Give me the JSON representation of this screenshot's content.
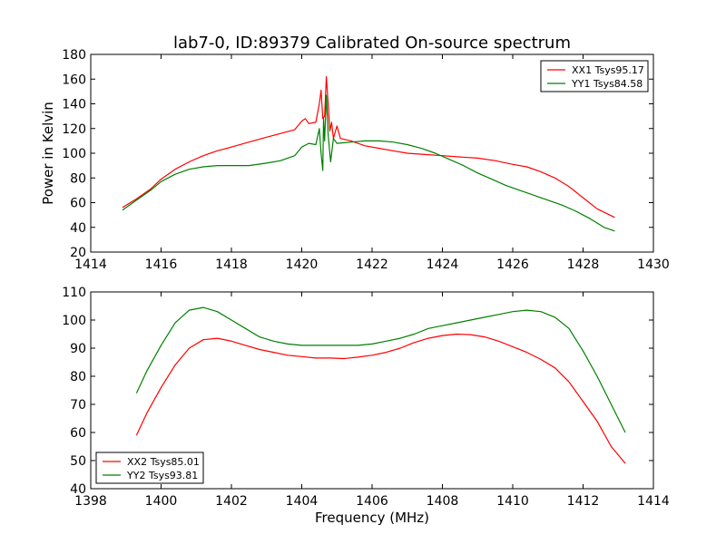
{
  "title": "lab7-0, ID:89379 Calibrated On-source spectrum",
  "colors": {
    "red": "#ff0000",
    "green": "#008000"
  },
  "chart_data": [
    {
      "type": "line",
      "ylabel": "Power in Kelvin",
      "xlabel": "",
      "xlim": [
        1414,
        1430
      ],
      "ylim": [
        20,
        180
      ],
      "xticks": [
        1414,
        1416,
        1418,
        1420,
        1422,
        1424,
        1426,
        1428,
        1430
      ],
      "yticks": [
        20,
        40,
        60,
        80,
        100,
        120,
        140,
        160,
        180
      ],
      "legend_position": "top-right",
      "series": [
        {
          "name": "XX1 Tsys95.17",
          "color": "#ff0000",
          "points": [
            [
              1414.9,
              56
            ],
            [
              1415.3,
              63
            ],
            [
              1415.7,
              71
            ],
            [
              1416.0,
              79
            ],
            [
              1416.4,
              87
            ],
            [
              1416.8,
              93
            ],
            [
              1417.2,
              98
            ],
            [
              1417.6,
              102
            ],
            [
              1418.0,
              105
            ],
            [
              1418.5,
              109
            ],
            [
              1419.0,
              113
            ],
            [
              1419.4,
              116
            ],
            [
              1419.8,
              119
            ],
            [
              1420.0,
              126
            ],
            [
              1420.1,
              128
            ],
            [
              1420.2,
              124
            ],
            [
              1420.4,
              125
            ],
            [
              1420.5,
              140
            ],
            [
              1420.55,
              151
            ],
            [
              1420.6,
              128
            ],
            [
              1420.65,
              130
            ],
            [
              1420.7,
              162
            ],
            [
              1420.75,
              140
            ],
            [
              1420.8,
              118
            ],
            [
              1420.85,
              125
            ],
            [
              1420.9,
              112
            ],
            [
              1421.0,
              122
            ],
            [
              1421.1,
              112
            ],
            [
              1421.4,
              110
            ],
            [
              1421.8,
              106
            ],
            [
              1422.2,
              104
            ],
            [
              1422.6,
              102
            ],
            [
              1423.0,
              100
            ],
            [
              1423.5,
              99
            ],
            [
              1424.0,
              98
            ],
            [
              1424.5,
              97
            ],
            [
              1425.0,
              96
            ],
            [
              1425.5,
              94
            ],
            [
              1426.0,
              91
            ],
            [
              1426.4,
              89
            ],
            [
              1426.8,
              85
            ],
            [
              1427.2,
              80
            ],
            [
              1427.6,
              73
            ],
            [
              1428.0,
              64
            ],
            [
              1428.4,
              55
            ],
            [
              1428.9,
              48
            ]
          ]
        },
        {
          "name": "YY1 Tsys84.58",
          "color": "#008000",
          "points": [
            [
              1414.9,
              54
            ],
            [
              1415.3,
              62
            ],
            [
              1415.7,
              70
            ],
            [
              1416.0,
              77
            ],
            [
              1416.4,
              83
            ],
            [
              1416.8,
              87
            ],
            [
              1417.2,
              89
            ],
            [
              1417.6,
              90
            ],
            [
              1418.0,
              90
            ],
            [
              1418.5,
              90
            ],
            [
              1419.0,
              92
            ],
            [
              1419.4,
              94
            ],
            [
              1419.8,
              98
            ],
            [
              1420.0,
              105
            ],
            [
              1420.2,
              108
            ],
            [
              1420.4,
              107
            ],
            [
              1420.5,
              120
            ],
            [
              1420.55,
              100
            ],
            [
              1420.6,
              86
            ],
            [
              1420.62,
              128
            ],
            [
              1420.65,
              110
            ],
            [
              1420.7,
              147
            ],
            [
              1420.75,
              115
            ],
            [
              1420.82,
              93
            ],
            [
              1420.9,
              112
            ],
            [
              1421.0,
              108
            ],
            [
              1421.4,
              109
            ],
            [
              1421.8,
              110
            ],
            [
              1422.2,
              110
            ],
            [
              1422.6,
              109
            ],
            [
              1423.0,
              107
            ],
            [
              1423.4,
              104
            ],
            [
              1423.8,
              100
            ],
            [
              1424.2,
              95
            ],
            [
              1424.6,
              90
            ],
            [
              1425.0,
              84
            ],
            [
              1425.4,
              79
            ],
            [
              1425.8,
              74
            ],
            [
              1426.2,
              70
            ],
            [
              1426.6,
              66
            ],
            [
              1427.0,
              62
            ],
            [
              1427.4,
              58
            ],
            [
              1427.8,
              53
            ],
            [
              1428.2,
              47
            ],
            [
              1428.6,
              40
            ],
            [
              1428.9,
              37
            ]
          ]
        }
      ]
    },
    {
      "type": "line",
      "ylabel": "",
      "xlabel": "Frequency (MHz)",
      "xlim": [
        1398,
        1414
      ],
      "ylim": [
        40,
        110
      ],
      "xticks": [
        1398,
        1400,
        1402,
        1404,
        1406,
        1408,
        1410,
        1412,
        1414
      ],
      "yticks": [
        40,
        50,
        60,
        70,
        80,
        90,
        100,
        110
      ],
      "legend_position": "bottom-left",
      "series": [
        {
          "name": "XX2 Tsys85.01",
          "color": "#ff0000",
          "points": [
            [
              1399.3,
              59
            ],
            [
              1399.6,
              67
            ],
            [
              1400.0,
              76
            ],
            [
              1400.4,
              84
            ],
            [
              1400.8,
              90
            ],
            [
              1401.2,
              93
            ],
            [
              1401.6,
              93.5
            ],
            [
              1402.0,
              92.5
            ],
            [
              1402.4,
              91
            ],
            [
              1402.8,
              89.5
            ],
            [
              1403.2,
              88.5
            ],
            [
              1403.6,
              87.5
            ],
            [
              1404.0,
              87
            ],
            [
              1404.4,
              86.5
            ],
            [
              1404.8,
              86.5
            ],
            [
              1405.2,
              86.3
            ],
            [
              1405.6,
              86.8
            ],
            [
              1406.0,
              87.5
            ],
            [
              1406.4,
              88.5
            ],
            [
              1406.8,
              90
            ],
            [
              1407.2,
              92
            ],
            [
              1407.6,
              93.5
            ],
            [
              1408.0,
              94.5
            ],
            [
              1408.4,
              95
            ],
            [
              1408.8,
              94.8
            ],
            [
              1409.2,
              94
            ],
            [
              1409.6,
              92.5
            ],
            [
              1410.0,
              90.5
            ],
            [
              1410.4,
              88.5
            ],
            [
              1410.8,
              86
            ],
            [
              1411.2,
              83
            ],
            [
              1411.6,
              78
            ],
            [
              1412.0,
              71
            ],
            [
              1412.4,
              64
            ],
            [
              1412.8,
              55
            ],
            [
              1413.2,
              49
            ]
          ]
        },
        {
          "name": "YY2 Tsys93.81",
          "color": "#008000",
          "points": [
            [
              1399.3,
              74
            ],
            [
              1399.6,
              82
            ],
            [
              1400.0,
              91
            ],
            [
              1400.4,
              99
            ],
            [
              1400.8,
              103.5
            ],
            [
              1401.2,
              104.5
            ],
            [
              1401.6,
              103
            ],
            [
              1402.0,
              100
            ],
            [
              1402.4,
              97
            ],
            [
              1402.8,
              94
            ],
            [
              1403.2,
              92.5
            ],
            [
              1403.6,
              91.5
            ],
            [
              1404.0,
              91
            ],
            [
              1404.4,
              91
            ],
            [
              1404.8,
              91
            ],
            [
              1405.2,
              91
            ],
            [
              1405.6,
              91
            ],
            [
              1406.0,
              91.5
            ],
            [
              1406.4,
              92.5
            ],
            [
              1406.8,
              93.5
            ],
            [
              1407.2,
              95
            ],
            [
              1407.6,
              97
            ],
            [
              1408.0,
              98
            ],
            [
              1408.4,
              99
            ],
            [
              1408.8,
              100
            ],
            [
              1409.2,
              101
            ],
            [
              1409.6,
              102
            ],
            [
              1410.0,
              103
            ],
            [
              1410.4,
              103.5
            ],
            [
              1410.8,
              103
            ],
            [
              1411.2,
              101
            ],
            [
              1411.6,
              97
            ],
            [
              1412.0,
              89
            ],
            [
              1412.4,
              80
            ],
            [
              1412.8,
              70
            ],
            [
              1413.2,
              60
            ]
          ]
        }
      ]
    }
  ]
}
